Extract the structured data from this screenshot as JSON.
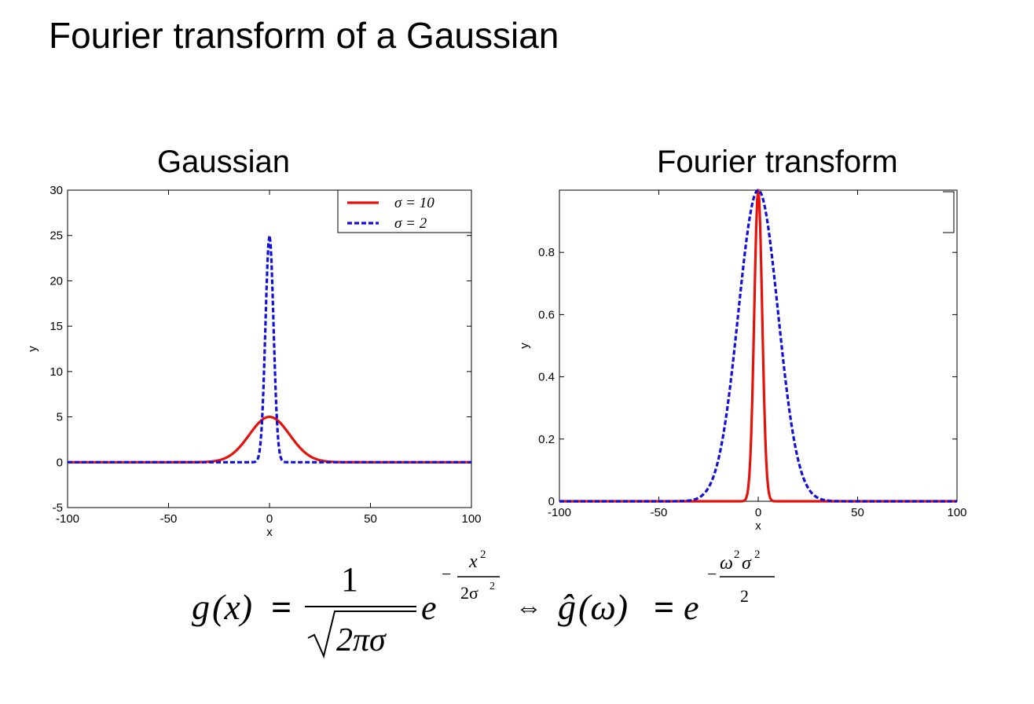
{
  "slide": {
    "title": "Fourier transform of a Gaussian"
  },
  "chart_data": [
    {
      "type": "line",
      "title": "Gaussian",
      "xlabel": "x",
      "ylabel": "y",
      "xlim": [
        -100,
        100
      ],
      "ylim": [
        -5,
        30
      ],
      "xticks": [
        -100,
        -50,
        0,
        50,
        100
      ],
      "yticks": [
        -5,
        0,
        5,
        10,
        15,
        20,
        25,
        30
      ],
      "legend": "top-right",
      "series": [
        {
          "name": "σ = 10",
          "color": "#e3120b",
          "style": "solid",
          "sigma": 10,
          "amplitude": 5,
          "x": [
            -100,
            -40,
            -30,
            -20,
            -10,
            0,
            10,
            20,
            30,
            40,
            100
          ],
          "y": [
            0,
            0.002,
            0.055,
            0.68,
            3.03,
            5,
            3.03,
            0.68,
            0.055,
            0.002,
            0
          ]
        },
        {
          "name": "σ = 2",
          "color": "#1010d8",
          "style": "dashed",
          "sigma": 2,
          "amplitude": 25,
          "x": [
            -100,
            -10,
            -6,
            -4,
            -2,
            0,
            2,
            4,
            6,
            10,
            100
          ],
          "y": [
            0,
            0,
            0.28,
            3.38,
            15.2,
            25,
            15.2,
            3.38,
            0.28,
            0,
            0
          ]
        }
      ]
    },
    {
      "type": "line",
      "title": "Fourier transform",
      "xlabel": "x",
      "ylabel": "y",
      "xlim": [
        -100,
        100
      ],
      "ylim": [
        0,
        1
      ],
      "xticks": [
        -100,
        -50,
        0,
        50,
        100
      ],
      "yticks": [
        0,
        0.2,
        0.4,
        0.6,
        0.8
      ],
      "series": [
        {
          "color": "#e3120b",
          "style": "solid",
          "sigma": 2,
          "x": [
            -100,
            -8,
            -4,
            -2,
            0,
            2,
            4,
            8,
            100
          ],
          "y": [
            0,
            0,
            0.135,
            0.61,
            1,
            0.61,
            0.135,
            0,
            0
          ]
        },
        {
          "color": "#1010d8",
          "style": "dashed",
          "sigma": 10,
          "x": [
            -100,
            -40,
            -30,
            -20,
            -10,
            0,
            10,
            20,
            30,
            40,
            100
          ],
          "y": [
            0,
            0,
            0.011,
            0.135,
            0.61,
            1,
            0.61,
            0.135,
            0.011,
            0,
            0
          ]
        }
      ]
    }
  ],
  "formula": {
    "lhs_func": "g",
    "lhs_var": "(x)",
    "equals": "=",
    "numerator": "1",
    "sqrt_body": "2πσ",
    "base": "e",
    "exp_sign": "−",
    "exp_num": "x",
    "exp_num_power": "2",
    "exp_den": "2σ",
    "exp_den_power": "2",
    "iff": "⇔",
    "rhs_func": "ĝ",
    "rhs_var": "(ω)",
    "rhs_equals": "=",
    "rhs_base": "e",
    "rhs_exp_sign": "−",
    "rhs_exp_num_a": "ω",
    "rhs_exp_num_a_power": "2",
    "rhs_exp_num_b": "σ",
    "rhs_exp_num_b_power": "2",
    "rhs_exp_den": "2"
  }
}
